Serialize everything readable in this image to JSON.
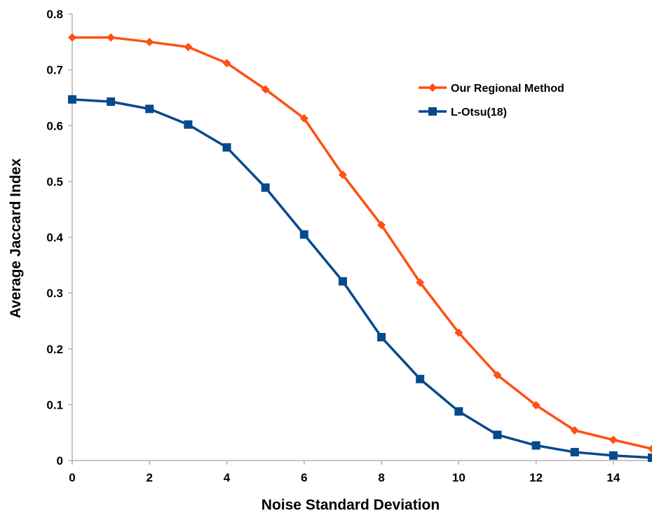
{
  "chart_data": {
    "type": "line",
    "title": "",
    "xlabel": "Noise Standard Deviation",
    "ylabel": "Average Jaccard Index",
    "xlim": [
      0,
      15
    ],
    "ylim": [
      0,
      0.8
    ],
    "x_ticks": [
      "0",
      "2",
      "4",
      "6",
      "8",
      "10",
      "12",
      "14"
    ],
    "y_ticks": [
      "0",
      "0.1",
      "0.2",
      "0.3",
      "0.4",
      "0.5",
      "0.6",
      "0.7",
      "0.8"
    ],
    "grid": false,
    "legend_position": "top-right",
    "x": [
      0,
      1,
      2,
      3,
      4,
      5,
      6,
      7,
      8,
      9,
      10,
      11,
      12,
      13,
      14,
      15
    ],
    "series": [
      {
        "name": "Our Regional Method",
        "color": "#ff4f12",
        "marker": "diamond",
        "values": [
          0.758,
          0.758,
          0.75,
          0.741,
          0.712,
          0.665,
          0.613,
          0.512,
          0.422,
          0.319,
          0.229,
          0.153,
          0.099,
          0.054,
          0.037,
          0.021
        ]
      },
      {
        "name": "L-Otsu(18)",
        "color": "#044a8d",
        "marker": "square",
        "values": [
          0.647,
          0.643,
          0.63,
          0.602,
          0.561,
          0.489,
          0.405,
          0.321,
          0.221,
          0.146,
          0.088,
          0.046,
          0.027,
          0.015,
          0.009,
          0.005
        ]
      }
    ]
  }
}
